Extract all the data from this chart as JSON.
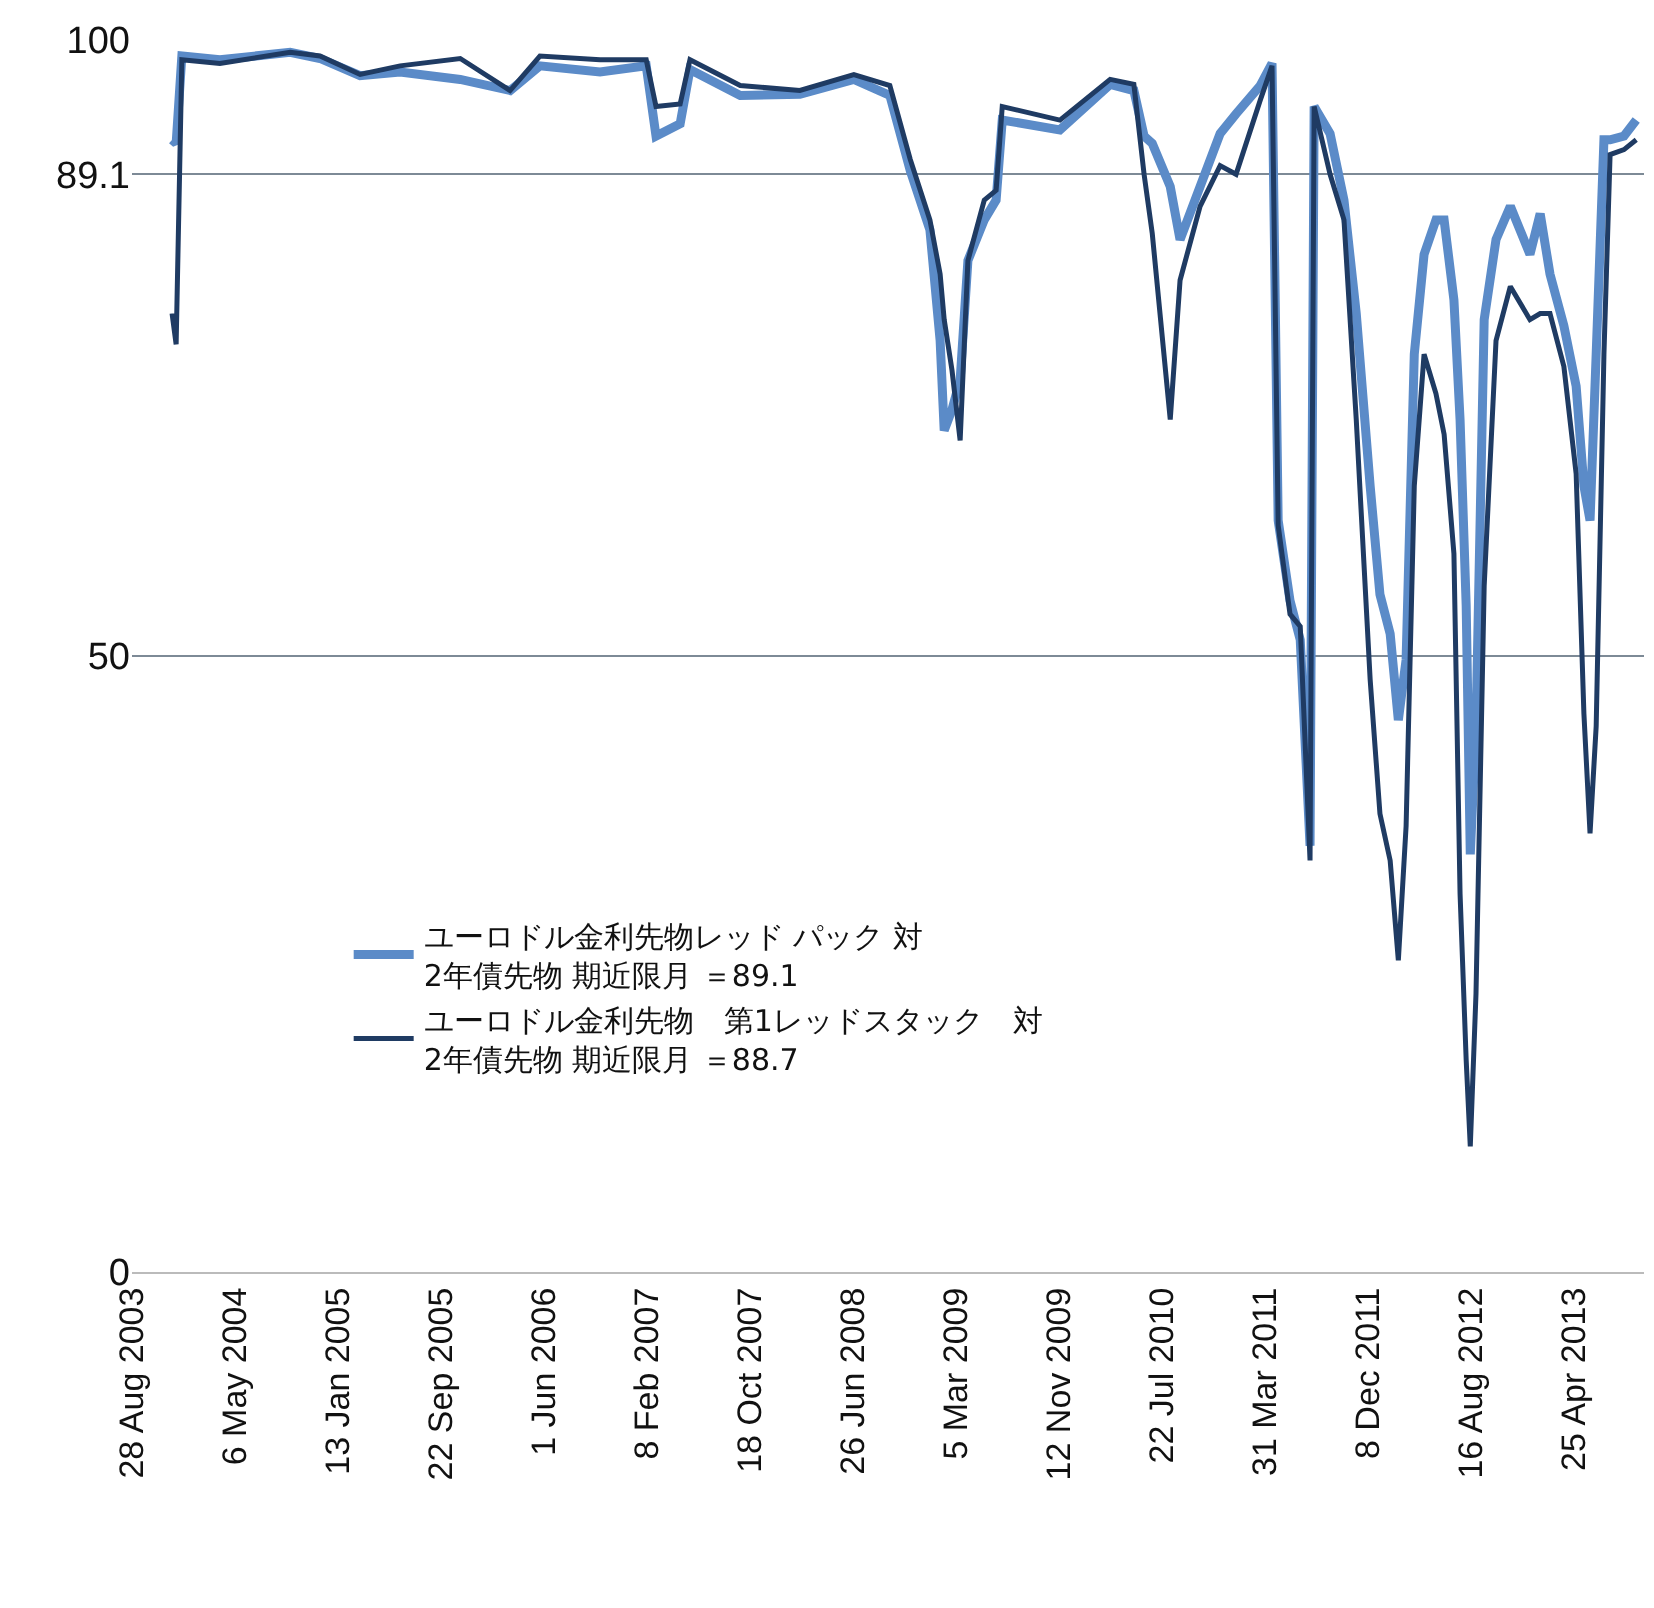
{
  "chart_data": {
    "type": "line",
    "x": [
      "2003-12-04",
      "2003-12-14",
      "2003-12-28",
      "2004-03-30",
      "2004-09-18",
      "2004-11-30",
      "2005-03-08",
      "2005-06-14",
      "2005-11-08",
      "2006-03-10",
      "2006-05-22",
      "2006-10-16",
      "2007-02-06",
      "2007-03-02",
      "2007-04-30",
      "2007-05-24",
      "2007-09-24",
      "2008-02-17",
      "2008-06-28",
      "2008-09-24",
      "2008-11-13",
      "2008-12-31",
      "2009-01-25",
      "2009-02-04",
      "2009-02-23",
      "2009-03-15",
      "2009-04-03",
      "2009-05-13",
      "2009-06-11",
      "2009-06-26",
      "2009-11-14",
      "2010-03-17",
      "2010-05-14",
      "2010-06-08",
      "2010-06-28",
      "2010-08-11",
      "2010-09-04",
      "2010-10-23",
      "2010-12-11",
      "2011-01-19",
      "2011-03-19",
      "2011-04-17",
      "2011-05-02",
      "2011-05-31",
      "2011-06-25",
      "2011-07-19",
      "2011-07-29",
      "2011-09-06",
      "2011-10-10",
      "2011-11-09",
      "2011-12-13",
      "2012-01-06",
      "2012-01-31",
      "2012-02-20",
      "2012-03-10",
      "2012-03-30",
      "2012-04-23",
      "2012-05-22",
      "2012-06-11",
      "2012-07-05",
      "2012-07-20",
      "2012-08-04",
      "2012-08-14",
      "2012-08-28",
      "2012-09-17",
      "2012-10-16",
      "2012-11-20",
      "2013-01-07",
      "2013-02-01",
      "2013-02-25",
      "2013-03-31",
      "2013-04-30",
      "2013-05-19",
      "2013-06-03",
      "2013-06-18",
      "2013-07-07",
      "2013-07-22",
      "2013-08-25",
      "2013-09-24"
    ],
    "series": [
      {
        "name": "ユーロドル金利先物レッド パック 対\n2年債先物 期近限月 ＝89.1",
        "color": "#5b8bc8",
        "values": [
          91.9,
          91.6,
          98.7,
          98.4,
          99.0,
          98.5,
          97.1,
          97.4,
          96.8,
          95.9,
          97.9,
          97.4,
          97.9,
          92.2,
          93.2,
          97.6,
          95.5,
          95.6,
          96.8,
          95.5,
          89.4,
          84.6,
          75.6,
          68.3,
          70.0,
          72.4,
          82.1,
          85.4,
          87.0,
          93.5,
          92.7,
          96.4,
          95.9,
          92.2,
          91.6,
          88.1,
          83.8,
          88.1,
          92.4,
          94.0,
          96.3,
          98.1,
          61.0,
          54.5,
          51.3,
          34.6,
          94.6,
          92.4,
          87.0,
          77.8,
          63.8,
          55.0,
          51.8,
          44.8,
          49.7,
          74.5,
          82.6,
          85.4,
          85.4,
          78.9,
          69.2,
          54.1,
          33.9,
          44.3,
          77.3,
          83.8,
          86.5,
          82.6,
          85.9,
          81.0,
          76.8,
          71.9,
          63.8,
          61.0,
          74.5,
          91.9,
          91.9,
          92.2,
          93.5
        ]
      },
      {
        "name": "ユーロドル金利先物　第1レッドスタック　対\n2年債先物 期近限月 ＝88.7",
        "color": "#1f3b63",
        "values": [
          77.8,
          75.3,
          98.4,
          98.1,
          99.0,
          98.7,
          97.2,
          97.9,
          98.5,
          95.9,
          98.7,
          98.4,
          98.4,
          94.6,
          94.8,
          98.4,
          96.3,
          95.9,
          97.2,
          96.3,
          90.3,
          85.4,
          81.0,
          77.3,
          73.2,
          67.5,
          82.1,
          87.0,
          87.8,
          94.6,
          93.5,
          96.8,
          96.4,
          89.1,
          84.3,
          69.2,
          80.5,
          86.5,
          89.8,
          89.1,
          95.1,
          97.9,
          60.6,
          53.4,
          52.4,
          33.4,
          94.6,
          89.1,
          85.4,
          69.2,
          48.1,
          37.2,
          33.4,
          25.3,
          36.2,
          63.8,
          74.5,
          71.3,
          68.0,
          58.3,
          30.7,
          17.2,
          10.2,
          22.6,
          55.7,
          75.6,
          80.0,
          77.3,
          77.8,
          77.8,
          73.5,
          64.8,
          45.3,
          35.6,
          44.3,
          74.5,
          90.7,
          91.1,
          91.9
        ]
      }
    ],
    "xlim": [
      "2003-08-28",
      "2013-10-13"
    ],
    "xticks": [
      {
        "value": "2003-08-28",
        "label": "28 Aug 2003"
      },
      {
        "value": "2004-05-06",
        "label": "6 May 2004"
      },
      {
        "value": "2005-01-13",
        "label": "13 Jan 2005"
      },
      {
        "value": "2005-09-22",
        "label": "22 Sep 2005"
      },
      {
        "value": "2006-06-01",
        "label": "1 Jun 2006"
      },
      {
        "value": "2007-02-08",
        "label": "8 Feb 2007"
      },
      {
        "value": "2007-10-18",
        "label": "18 Oct 2007"
      },
      {
        "value": "2008-06-26",
        "label": "26 Jun 2008"
      },
      {
        "value": "2009-03-05",
        "label": "5 Mar 2009"
      },
      {
        "value": "2009-11-12",
        "label": "12 Nov 2009"
      },
      {
        "value": "2010-07-22",
        "label": "22 Jul 2010"
      },
      {
        "value": "2011-03-31",
        "label": "31 Mar 2011"
      },
      {
        "value": "2011-12-08",
        "label": "8 Dec 2011"
      },
      {
        "value": "2012-08-16",
        "label": "16 Aug 2012"
      },
      {
        "value": "2013-04-25",
        "label": "25 Apr 2013"
      }
    ],
    "ylim": [
      0,
      100
    ],
    "yticks": [
      0,
      50,
      89.1,
      100
    ],
    "grid": "y",
    "legend": "bottom",
    "marker": "none",
    "line_style": "solid"
  }
}
